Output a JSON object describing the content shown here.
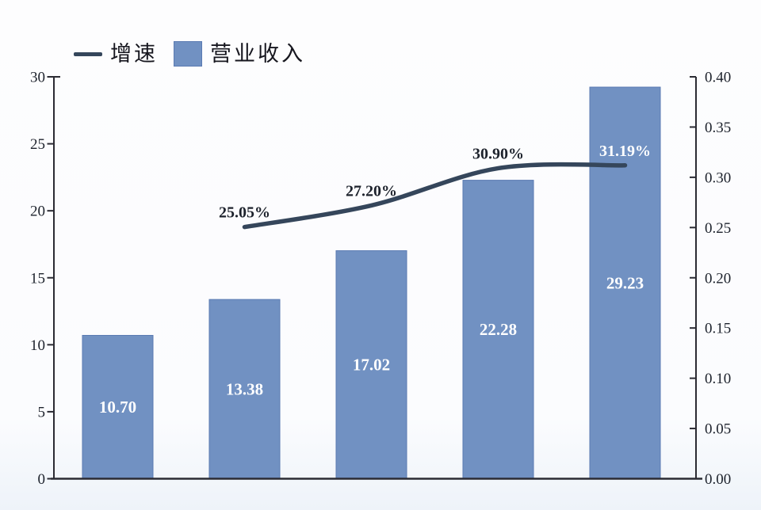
{
  "chart_data": {
    "type": "combo-bar-line",
    "title": "",
    "legend": [
      {
        "label": "增速",
        "marker": "line"
      },
      {
        "label": "营业收入",
        "marker": "square"
      }
    ],
    "bar_series": {
      "name": "营业收入",
      "axis": "left",
      "values": [
        10.7,
        13.38,
        17.02,
        22.28,
        29.23
      ],
      "value_labels": [
        "10.70",
        "13.38",
        "17.02",
        "22.28",
        "29.23"
      ]
    },
    "line_series": {
      "name": "增速",
      "axis": "right",
      "start_category_index": 1,
      "values": [
        0.2505,
        0.272,
        0.309,
        0.3119
      ],
      "point_labels": [
        {
          "text": "25.05%",
          "color": "#1d222c"
        },
        {
          "text": "27.20%",
          "color": "#1d222c"
        },
        {
          "text": "30.90%",
          "color": "#1d222c"
        },
        {
          "text": "31.19%",
          "color": "#ffffff"
        }
      ]
    },
    "left_axis": {
      "min": 0,
      "max": 30,
      "ticks": [
        "0",
        "5",
        "10",
        "15",
        "20",
        "25",
        "30"
      ]
    },
    "right_axis": {
      "min": 0,
      "max": 0.4,
      "ticks": [
        "0.00",
        "0.05",
        "0.10",
        "0.15",
        "0.20",
        "0.25",
        "0.30",
        "0.35",
        "0.40"
      ]
    },
    "colors": {
      "bar_fill": "#7191c2",
      "bar_border": "#5a7ab2",
      "line": "#35465b",
      "bar_value_label": "#ffffff",
      "axis": "#2b2b33",
      "text": "#1d222c"
    },
    "grid": "off",
    "x_axis_labels_visible": false
  }
}
